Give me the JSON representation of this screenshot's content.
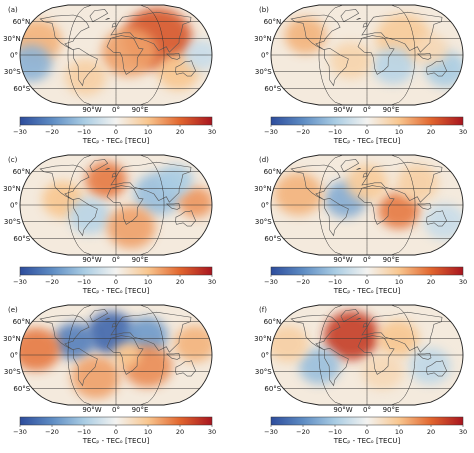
{
  "figure": {
    "lat_labels": [
      "60°N",
      "30°N",
      "0°",
      "30°S",
      "60°S"
    ],
    "lon_labels": [
      "90°W",
      "0°",
      "90°E"
    ],
    "colorbar": {
      "min": -30,
      "max": 30,
      "ticks": [
        "−30",
        "−20",
        "−10",
        "0",
        "10",
        "20",
        "30"
      ],
      "title": "TECₚ - TECₒ [TECU]",
      "colors": [
        "#2d4c9c",
        "#5e8cc3",
        "#a9cce3",
        "#f3f3f1",
        "#f8c68f",
        "#e1662f",
        "#a8151f"
      ]
    },
    "panels": [
      {
        "label": "(a)",
        "blobs": [
          {
            "lon": 80,
            "lat": 30,
            "r": 50,
            "v": 22
          },
          {
            "lon": 25,
            "lat": 5,
            "r": 40,
            "v": 14
          },
          {
            "lon": -150,
            "lat": 25,
            "r": 35,
            "v": 12
          },
          {
            "lon": -160,
            "lat": -15,
            "r": 30,
            "v": -14
          },
          {
            "lon": 120,
            "lat": -30,
            "r": 30,
            "v": 10
          },
          {
            "lon": -60,
            "lat": -40,
            "r": 30,
            "v": 8
          },
          {
            "lon": 160,
            "lat": 0,
            "r": 25,
            "v": -6
          }
        ]
      },
      {
        "label": "(b)",
        "blobs": [
          {
            "lon": -120,
            "lat": 35,
            "r": 30,
            "v": 12
          },
          {
            "lon": 70,
            "lat": 30,
            "r": 40,
            "v": 9
          },
          {
            "lon": 50,
            "lat": -20,
            "r": 30,
            "v": -8
          },
          {
            "lon": 150,
            "lat": -25,
            "r": 30,
            "v": -10
          },
          {
            "lon": -30,
            "lat": -10,
            "r": 30,
            "v": 7
          },
          {
            "lon": 120,
            "lat": 10,
            "r": 25,
            "v": 6
          }
        ]
      },
      {
        "label": "(c)",
        "blobs": [
          {
            "lon": -20,
            "lat": 45,
            "r": 30,
            "v": 18
          },
          {
            "lon": 80,
            "lat": 20,
            "r": 35,
            "v": -12
          },
          {
            "lon": 150,
            "lat": 5,
            "r": 25,
            "v": 15
          },
          {
            "lon": -100,
            "lat": 10,
            "r": 30,
            "v": 10
          },
          {
            "lon": -50,
            "lat": -20,
            "r": 30,
            "v": -8
          },
          {
            "lon": 30,
            "lat": -40,
            "r": 35,
            "v": 14
          },
          {
            "lon": 120,
            "lat": 45,
            "r": 25,
            "v": -10
          }
        ]
      },
      {
        "label": "(d)",
        "blobs": [
          {
            "lon": -40,
            "lat": 10,
            "r": 30,
            "v": -15
          },
          {
            "lon": 60,
            "lat": -10,
            "r": 30,
            "v": 18
          },
          {
            "lon": -130,
            "lat": 20,
            "r": 35,
            "v": 12
          },
          {
            "lon": 0,
            "lat": 40,
            "r": 30,
            "v": 9
          },
          {
            "lon": 150,
            "lat": -30,
            "r": 30,
            "v": -6
          },
          {
            "lon": 100,
            "lat": 40,
            "r": 30,
            "v": 8
          }
        ]
      },
      {
        "label": "(e)",
        "blobs": [
          {
            "lon": -10,
            "lat": 40,
            "r": 35,
            "v": -26
          },
          {
            "lon": -80,
            "lat": 25,
            "r": 30,
            "v": -22
          },
          {
            "lon": 60,
            "lat": 35,
            "r": 30,
            "v": -18
          },
          {
            "lon": -150,
            "lat": 10,
            "r": 35,
            "v": 18
          },
          {
            "lon": 60,
            "lat": -20,
            "r": 35,
            "v": 16
          },
          {
            "lon": -40,
            "lat": -40,
            "r": 35,
            "v": 14
          },
          {
            "lon": 150,
            "lat": 20,
            "r": 30,
            "v": 12
          },
          {
            "lon": 20,
            "lat": 0,
            "r": 20,
            "v": 10
          }
        ]
      },
      {
        "label": "(f)",
        "blobs": [
          {
            "lon": -30,
            "lat": 35,
            "r": 40,
            "v": 25
          },
          {
            "lon": -90,
            "lat": -20,
            "r": 30,
            "v": -12
          },
          {
            "lon": 60,
            "lat": 30,
            "r": 30,
            "v": 10
          },
          {
            "lon": 120,
            "lat": -20,
            "r": 30,
            "v": -7
          },
          {
            "lon": -150,
            "lat": 20,
            "r": 30,
            "v": 8
          },
          {
            "lon": 30,
            "lat": -30,
            "r": 30,
            "v": 6
          }
        ]
      }
    ]
  }
}
